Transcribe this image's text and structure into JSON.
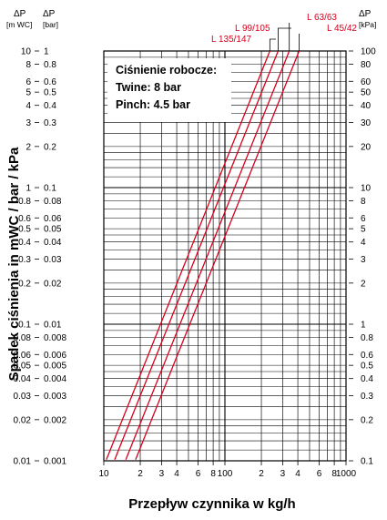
{
  "chart_data": {
    "type": "line",
    "scale": {
      "x": "log",
      "y": "log"
    },
    "xlim": [
      10,
      1000
    ],
    "ylim_bar": [
      0.001,
      1
    ],
    "grid": true,
    "xlabel": "Przepływ czynnika w kg/h",
    "ylabel": "Spadek ciśnienia in mWC / bar / kPa",
    "x_tick_labels": [
      {
        "v": 10,
        "t": "10"
      },
      {
        "v": 20,
        "t": "2"
      },
      {
        "v": 30,
        "t": "3"
      },
      {
        "v": 40,
        "t": "4"
      },
      {
        "v": 60,
        "t": "6"
      },
      {
        "v": 80,
        "t": "8"
      },
      {
        "v": 100,
        "t": "100"
      },
      {
        "v": 200,
        "t": "2"
      },
      {
        "v": 300,
        "t": "3"
      },
      {
        "v": 400,
        "t": "4"
      },
      {
        "v": 600,
        "t": "6"
      },
      {
        "v": 800,
        "t": "8"
      },
      {
        "v": 1000,
        "t": "1000"
      }
    ],
    "y_tick_values_bar": [
      1,
      0.8,
      0.6,
      0.5,
      0.4,
      0.3,
      0.2,
      0.1,
      0.08,
      0.06,
      0.05,
      0.04,
      0.03,
      0.02,
      0.01,
      0.008,
      0.006,
      0.005,
      0.004,
      0.003,
      0.002,
      0.001
    ],
    "axis_mwc": {
      "unit_symbol": "ΔP",
      "unit": "[m WC]",
      "ticks": [
        "10",
        "8",
        "6",
        "5",
        "4",
        "3",
        "2",
        "1",
        "0.8",
        "0.6",
        "0.5",
        "0.4",
        "0.3",
        "0.2",
        "0.1",
        "0.08",
        "0.06",
        "0.05",
        "0.04",
        "0.03",
        "0.02",
        "0.01"
      ]
    },
    "axis_bar": {
      "unit_symbol": "ΔP",
      "unit": "[bar]",
      "ticks": [
        "1",
        "0.8",
        "0.6",
        "0.5",
        "0.4",
        "0.3",
        "0.2",
        "0.1",
        "0.08",
        "0.06",
        "0.05",
        "0.04",
        "0.03",
        "0.02",
        "0.01",
        "0.008",
        "0.006",
        "0.005",
        "0.004",
        "0.003",
        "0.002",
        "0.001"
      ]
    },
    "axis_kpa": {
      "unit_symbol": "ΔP",
      "unit": "[kPa]",
      "ticks": [
        "100",
        "80",
        "60",
        "50",
        "40",
        "30",
        "20",
        "10",
        "8",
        "6",
        "5",
        "4",
        "3",
        "2",
        "1",
        "0.8",
        "0.6",
        "0.5",
        "0.4",
        "0.3",
        "0.2",
        "0.1"
      ]
    },
    "annotation": [
      "Ciśnienie robocze:",
      "Twine: 8 bar",
      "Pinch: 4.5 bar"
    ],
    "series": [
      {
        "name": "L 135/147",
        "x": [
          10.5,
          235
        ],
        "y_bar": [
          0.00102,
          1
        ]
      },
      {
        "name": "L 99/105",
        "x": [
          12.3,
          275
        ],
        "y_bar": [
          0.00102,
          1
        ]
      },
      {
        "name": "L 63/63",
        "x": [
          15.2,
          340
        ],
        "y_bar": [
          0.00102,
          1
        ]
      },
      {
        "name": "L 45/42",
        "x": [
          18.3,
          410
        ],
        "y_bar": [
          0.00102,
          1
        ]
      }
    ],
    "colors": {
      "series": "#d6001c",
      "grid": "#000000",
      "text": "#000000"
    }
  }
}
